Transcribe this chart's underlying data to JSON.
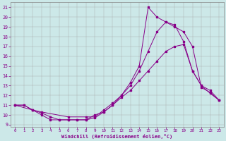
{
  "xlabel": "Windchill (Refroidissement éolien,°C)",
  "bg_color": "#cce8e8",
  "line_color": "#880088",
  "xlim": [
    -0.5,
    23.5
  ],
  "ylim": [
    8.8,
    21.5
  ],
  "xticks": [
    0,
    1,
    2,
    3,
    4,
    5,
    6,
    7,
    8,
    9,
    10,
    11,
    12,
    13,
    14,
    15,
    16,
    17,
    18,
    19,
    20,
    21,
    22,
    23
  ],
  "yticks": [
    9,
    10,
    11,
    12,
    13,
    14,
    15,
    16,
    17,
    18,
    19,
    20,
    21
  ],
  "curve_top_x": [
    0,
    1,
    2,
    3,
    4,
    5,
    6,
    7,
    8,
    9,
    10,
    11,
    12,
    13,
    14,
    15,
    16,
    17,
    18,
    19,
    20,
    21,
    22,
    23
  ],
  "curve_top_y": [
    11,
    11,
    10.5,
    10.2,
    9.8,
    9.5,
    9.5,
    9.5,
    9.5,
    9.7,
    10.3,
    11,
    12,
    13.3,
    15,
    21,
    20,
    19.5,
    19.2,
    17.5,
    14.5,
    13,
    12.2,
    11.5
  ],
  "curve_mid_x": [
    0,
    2,
    3,
    6,
    8,
    9,
    10,
    11,
    12,
    13,
    14,
    15,
    16,
    17,
    18,
    19,
    20,
    21,
    22,
    23
  ],
  "curve_mid_y": [
    11,
    10.5,
    10.3,
    9.8,
    9.8,
    9.8,
    10.5,
    11.2,
    12,
    13,
    14.5,
    16.5,
    18.5,
    19.5,
    19,
    18.5,
    17,
    12.8,
    12.3,
    11.5
  ],
  "curve_bot_x": [
    0,
    1,
    2,
    3,
    4,
    5,
    6,
    7,
    8,
    9,
    10,
    11,
    12,
    13,
    14,
    15,
    16,
    17,
    18,
    19,
    20,
    21,
    22,
    23
  ],
  "curve_bot_y": [
    11,
    11,
    10.5,
    10,
    9.5,
    9.5,
    9.5,
    9.5,
    9.5,
    10,
    10.3,
    11,
    11.8,
    12.5,
    13.5,
    14.5,
    15.5,
    16.5,
    17,
    17.2,
    14.5,
    13,
    12.5,
    11.5
  ]
}
